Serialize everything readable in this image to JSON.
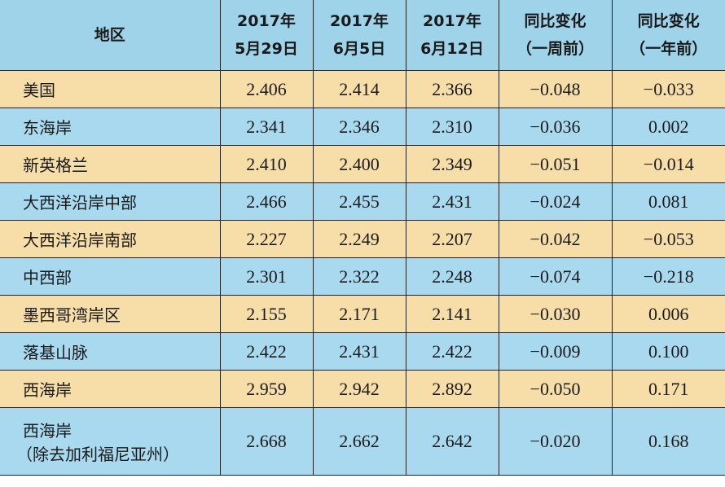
{
  "header": {
    "region": "地区",
    "col1": [
      "2017年",
      "5月29日"
    ],
    "col2": [
      "2017年",
      "6月5日"
    ],
    "col3": [
      "2017年",
      "6月12日"
    ],
    "col4": [
      "同比变化",
      "（一周前）"
    ],
    "col5": [
      "同比变化",
      "（一年前）"
    ]
  },
  "rows": [
    {
      "region": "美国",
      "v1": "2.406",
      "v2": "2.414",
      "v3": "2.366",
      "wk": "−0.048",
      "yr": "−0.033",
      "color": "orange"
    },
    {
      "region": "东海岸",
      "v1": "2.341",
      "v2": "2.346",
      "v3": "2.310",
      "wk": "−0.036",
      "yr": "0.002",
      "color": "blue"
    },
    {
      "region": "新英格兰",
      "v1": "2.410",
      "v2": "2.400",
      "v3": "2.349",
      "wk": "−0.051",
      "yr": "−0.014",
      "color": "orange"
    },
    {
      "region": "大西洋沿岸中部",
      "v1": "2.466",
      "v2": "2.455",
      "v3": "2.431",
      "wk": "−0.024",
      "yr": "0.081",
      "color": "blue"
    },
    {
      "region": "大西洋沿岸南部",
      "v1": "2.227",
      "v2": "2.249",
      "v3": "2.207",
      "wk": "−0.042",
      "yr": "−0.053",
      "color": "orange"
    },
    {
      "region": "中西部",
      "v1": "2.301",
      "v2": "2.322",
      "v3": "2.248",
      "wk": "−0.074",
      "yr": "−0.218",
      "color": "blue"
    },
    {
      "region": "墨西哥湾岸区",
      "v1": "2.155",
      "v2": "2.171",
      "v3": "2.141",
      "wk": "−0.030",
      "yr": "0.006",
      "color": "orange"
    },
    {
      "region": "落基山脉",
      "v1": "2.422",
      "v2": "2.431",
      "v3": "2.422",
      "wk": "−0.009",
      "yr": "0.100",
      "color": "blue"
    },
    {
      "region": "西海岸",
      "v1": "2.959",
      "v2": "2.942",
      "v3": "2.892",
      "wk": "−0.050",
      "yr": "0.171",
      "color": "orange"
    },
    {
      "region": "西海岸",
      "region_line2": "（除去加利福尼亚州）",
      "v1": "2.668",
      "v2": "2.662",
      "v3": "2.642",
      "wk": "−0.020",
      "yr": "0.168",
      "color": "blue"
    }
  ],
  "colors": {
    "header_bg": "#9fd3ea",
    "row_orange": "#f7dea8",
    "row_blue": "#a9d9ee",
    "border": "#222222"
  }
}
